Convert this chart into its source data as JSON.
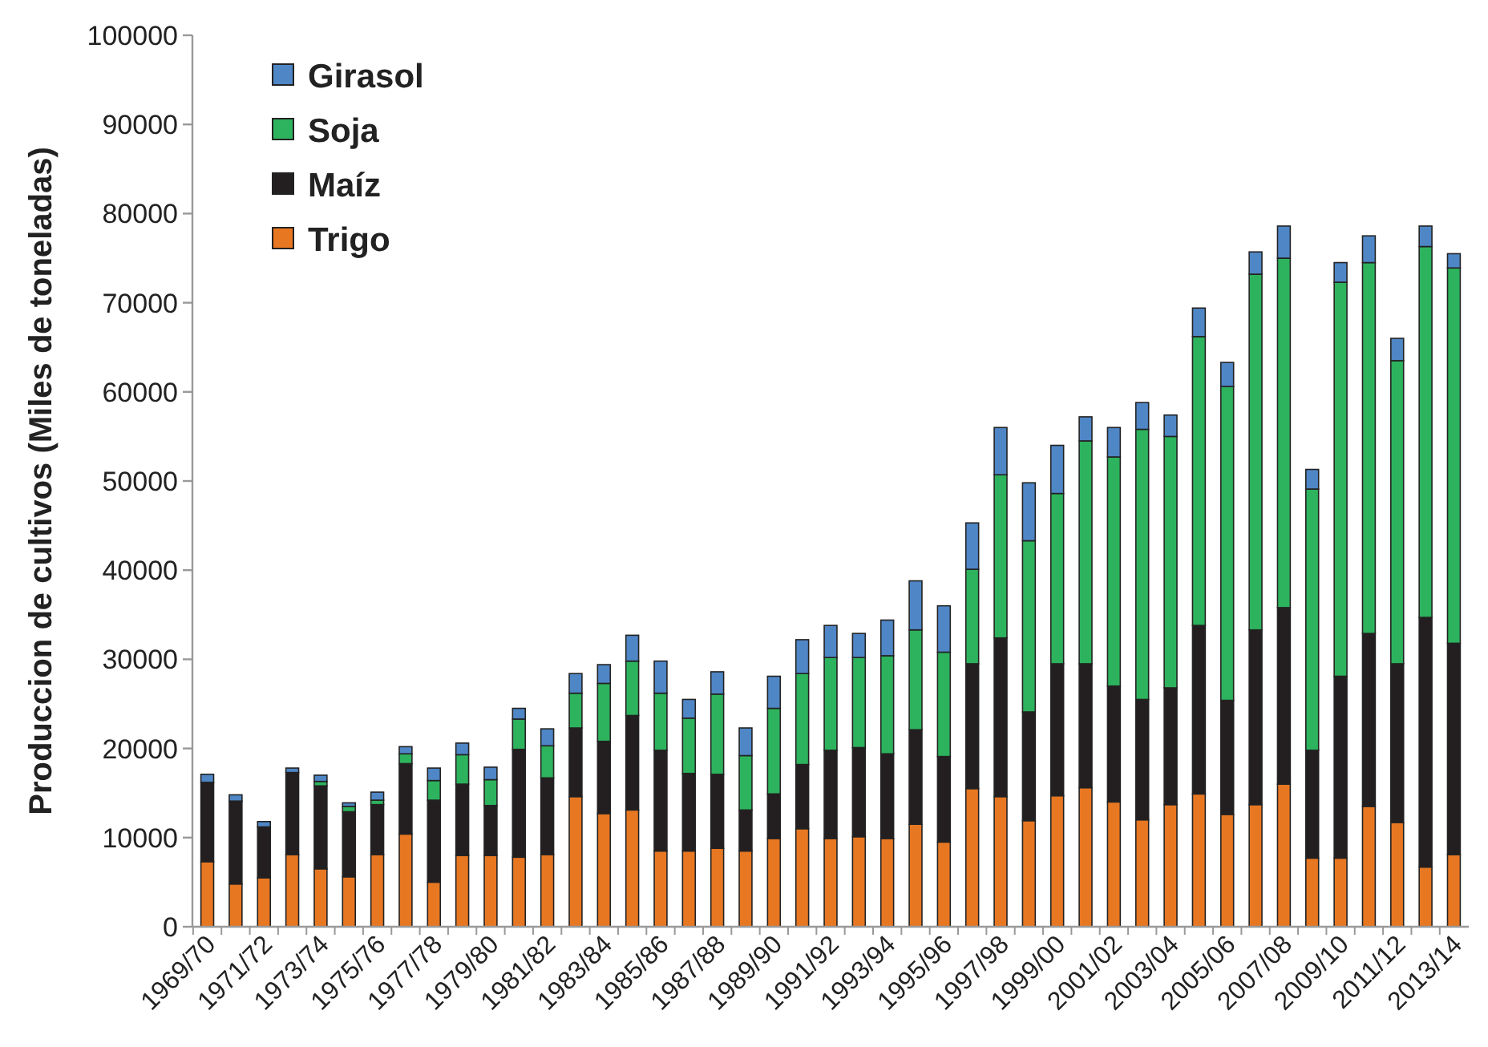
{
  "chart_data": {
    "type": "bar",
    "stacked": true,
    "ylabel": "Produccion de cultivos (Miles de toneladas)",
    "categories": [
      "1969/70",
      null,
      "1971/72",
      null,
      "1973/74",
      null,
      "1975/76",
      null,
      "1977/78",
      null,
      "1979/80",
      null,
      "1981/82",
      null,
      "1983/84",
      null,
      "1985/86",
      null,
      "1987/88",
      null,
      "1989/90",
      null,
      "1991/92",
      null,
      "1993/94",
      null,
      "1995/96",
      null,
      "1997/98",
      null,
      "1999/00",
      null,
      "2001/02",
      null,
      "2003/04",
      null,
      "2005/06",
      null,
      "2007/08",
      null,
      "2009/10",
      null,
      "2011/12",
      null,
      "2013/14"
    ],
    "series": [
      {
        "name": "Trigo",
        "color": "#e87722",
        "values": [
          7300,
          4800,
          5500,
          8100,
          6500,
          5600,
          8100,
          10400,
          5000,
          8000,
          8000,
          7800,
          8100,
          14600,
          12700,
          13100,
          8500,
          8500,
          8800,
          8500,
          9900,
          11000,
          9900,
          10100,
          9900,
          11500,
          9500,
          15500,
          14600,
          11900,
          14700,
          15600,
          14000,
          12000,
          13700,
          14900,
          12600,
          13700,
          16000,
          7700,
          7700,
          13500,
          11700,
          6700,
          8100
        ]
      },
      {
        "name": "Maíz",
        "color": "#231f20",
        "values": [
          8900,
          9300,
          5700,
          9200,
          9300,
          7300,
          5600,
          7900,
          9200,
          8000,
          5600,
          12100,
          8600,
          7700,
          8100,
          10600,
          11300,
          8700,
          8300,
          4600,
          5000,
          7200,
          9900,
          10000,
          9500,
          10600,
          9600,
          14000,
          17800,
          12200,
          14800,
          13900,
          13000,
          13500,
          13100,
          18900,
          12800,
          19600,
          19800,
          12100,
          20400,
          19400,
          17800,
          28000,
          23700
        ]
      },
      {
        "name": "Soja",
        "color": "#2db35d",
        "values": [
          null,
          null,
          null,
          null,
          500,
          600,
          500,
          1100,
          2200,
          3300,
          2900,
          3400,
          3600,
          3900,
          6500,
          6100,
          6400,
          6200,
          9000,
          6100,
          9600,
          10200,
          10400,
          10100,
          11000,
          11200,
          11700,
          10600,
          18300,
          19200,
          19100,
          25000,
          25700,
          30300,
          28200,
          32400,
          35200,
          39900,
          39200,
          29300,
          44200,
          41600,
          34000,
          41600,
          42100
        ]
      },
      {
        "name": "Girasol",
        "color": "#4f86c6",
        "values": [
          900,
          700,
          600,
          500,
          700,
          400,
          900,
          800,
          1400,
          1300,
          1400,
          1200,
          1900,
          2200,
          2100,
          2900,
          3600,
          2100,
          2500,
          3100,
          3600,
          3800,
          3600,
          2700,
          4000,
          5500,
          5200,
          5200,
          5300,
          6500,
          5400,
          2700,
          3300,
          3000,
          2400,
          3200,
          2700,
          2500,
          3600,
          2200,
          2200,
          3000,
          2500,
          2300,
          1600
        ]
      }
    ],
    "ylim": [
      0,
      100000
    ],
    "yticks": [
      0,
      10000,
      20000,
      30000,
      40000,
      50000,
      60000,
      70000,
      80000,
      90000,
      100000
    ],
    "grid": false,
    "legend": "top left"
  }
}
